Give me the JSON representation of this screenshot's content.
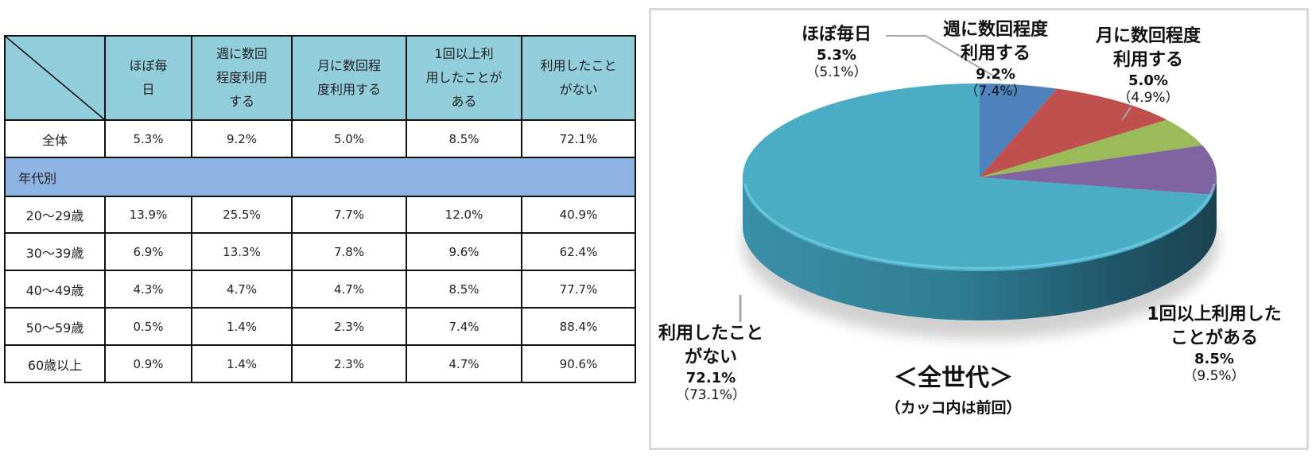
{
  "table": {
    "headers": [
      "ほぼ毎\n日",
      "週に数回\n程度利用\nする",
      "月に数回程\n度利用する",
      "1回以上利\n用したことが\nある",
      "利用したこと\nがない"
    ],
    "total_row": {
      "label": "全体",
      "values": [
        "5.3%",
        "9.2%",
        "5.0%",
        "8.5%",
        "72.1%"
      ]
    },
    "section_label": "年代別",
    "age_rows": [
      {
        "label": "20～29歳",
        "values": [
          "13.9%",
          "25.5%",
          "7.7%",
          "12.0%",
          "40.9%"
        ]
      },
      {
        "label": "30～39歳",
        "values": [
          "6.9%",
          "13.3%",
          "7.8%",
          "9.6%",
          "62.4%"
        ]
      },
      {
        "label": "40～49歳",
        "values": [
          "4.3%",
          "4.7%",
          "4.7%",
          "8.5%",
          "77.7%"
        ]
      },
      {
        "label": "50～59歳",
        "values": [
          "0.5%",
          "1.4%",
          "2.3%",
          "7.4%",
          "88.4%"
        ]
      },
      {
        "label": "60歳以上",
        "values": [
          "0.9%",
          "1.4%",
          "2.3%",
          "4.7%",
          "90.6%"
        ]
      }
    ],
    "colors": {
      "header_bg": "#92cddc",
      "section_bg": "#8db3e2",
      "border": "#111111"
    }
  },
  "chart": {
    "title": "＜全世代＞",
    "subtitle": "（カッコ内は前回）",
    "labels": {
      "daily": {
        "name1": "ほぼ毎日",
        "name2": "",
        "pct": "5.3%",
        "prev": "（5.1%）"
      },
      "weekly": {
        "name1": "週に数回程度",
        "name2": "利用する",
        "pct": "9.2%",
        "prev": "（7.4%）"
      },
      "monthly": {
        "name1": "月に数回程度",
        "name2": "利用する",
        "pct": "5.0%",
        "prev": "（4.9%）"
      },
      "once": {
        "name1": "1回以上利用した",
        "name2": "ことがある",
        "pct": "8.5%",
        "prev": "（9.5%）"
      },
      "never": {
        "name1": "利用したこと",
        "name2": "がない",
        "pct": "72.1%",
        "prev": "（73.1%）"
      }
    }
  },
  "chart_data": {
    "type": "pie",
    "title": "＜全世代＞",
    "subtitle": "（カッコ内は前回）",
    "categories": [
      "ほぼ毎日",
      "週に数回程度利用する",
      "月に数回程度利用する",
      "1回以上利用したことがある",
      "利用したことがない"
    ],
    "values": [
      5.3,
      9.2,
      5.0,
      8.5,
      72.1
    ],
    "previous_values": [
      5.1,
      7.4,
      4.9,
      9.5,
      73.1
    ],
    "colors": [
      "#4f81bd",
      "#c0504d",
      "#9bbb59",
      "#8064a2",
      "#4bacc6"
    ],
    "style": "3d-pie",
    "start_angle": "12 o'clock, clockwise",
    "legend": "none (data labels with leader lines)"
  }
}
